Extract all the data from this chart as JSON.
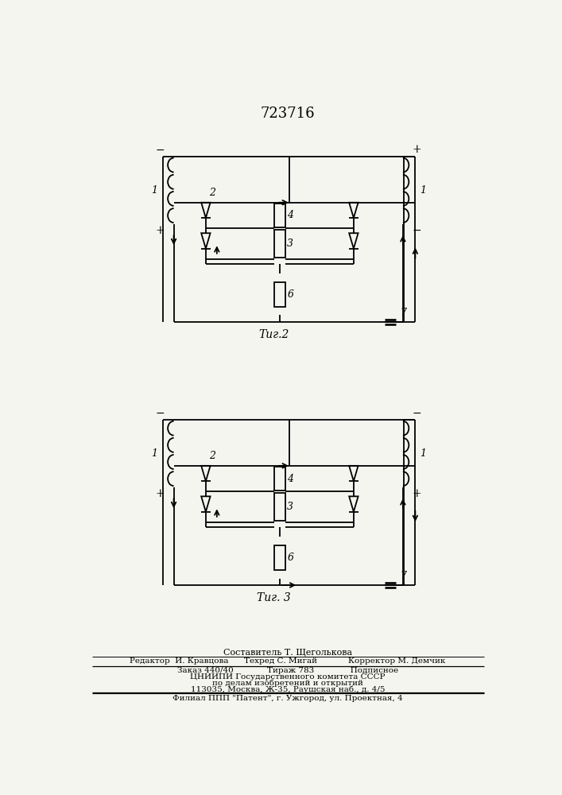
{
  "title_patent": "723716",
  "fig2_label": "Τиг.2",
  "fig3_label": "Τиг. 3",
  "footer_lines": [
    "Составитель Т. Щеголькова",
    "Редактор  И. Кравцова      Техред С. Мигай            Корректор М. Демчик",
    "Заказ 440/40             Тираж 783              Подписное",
    "ЦНИИПИ Государственного комитета СССР",
    "по делам изобретений и открытий",
    "113035, Москва, Ж-35, Раушская наб., д. 4/5",
    "Филиал ППП \"Патент\", г. Ужгород, ул. Проектная, 4"
  ],
  "bg_color": "#f5f5f0",
  "line_color": "#1a1a1a"
}
